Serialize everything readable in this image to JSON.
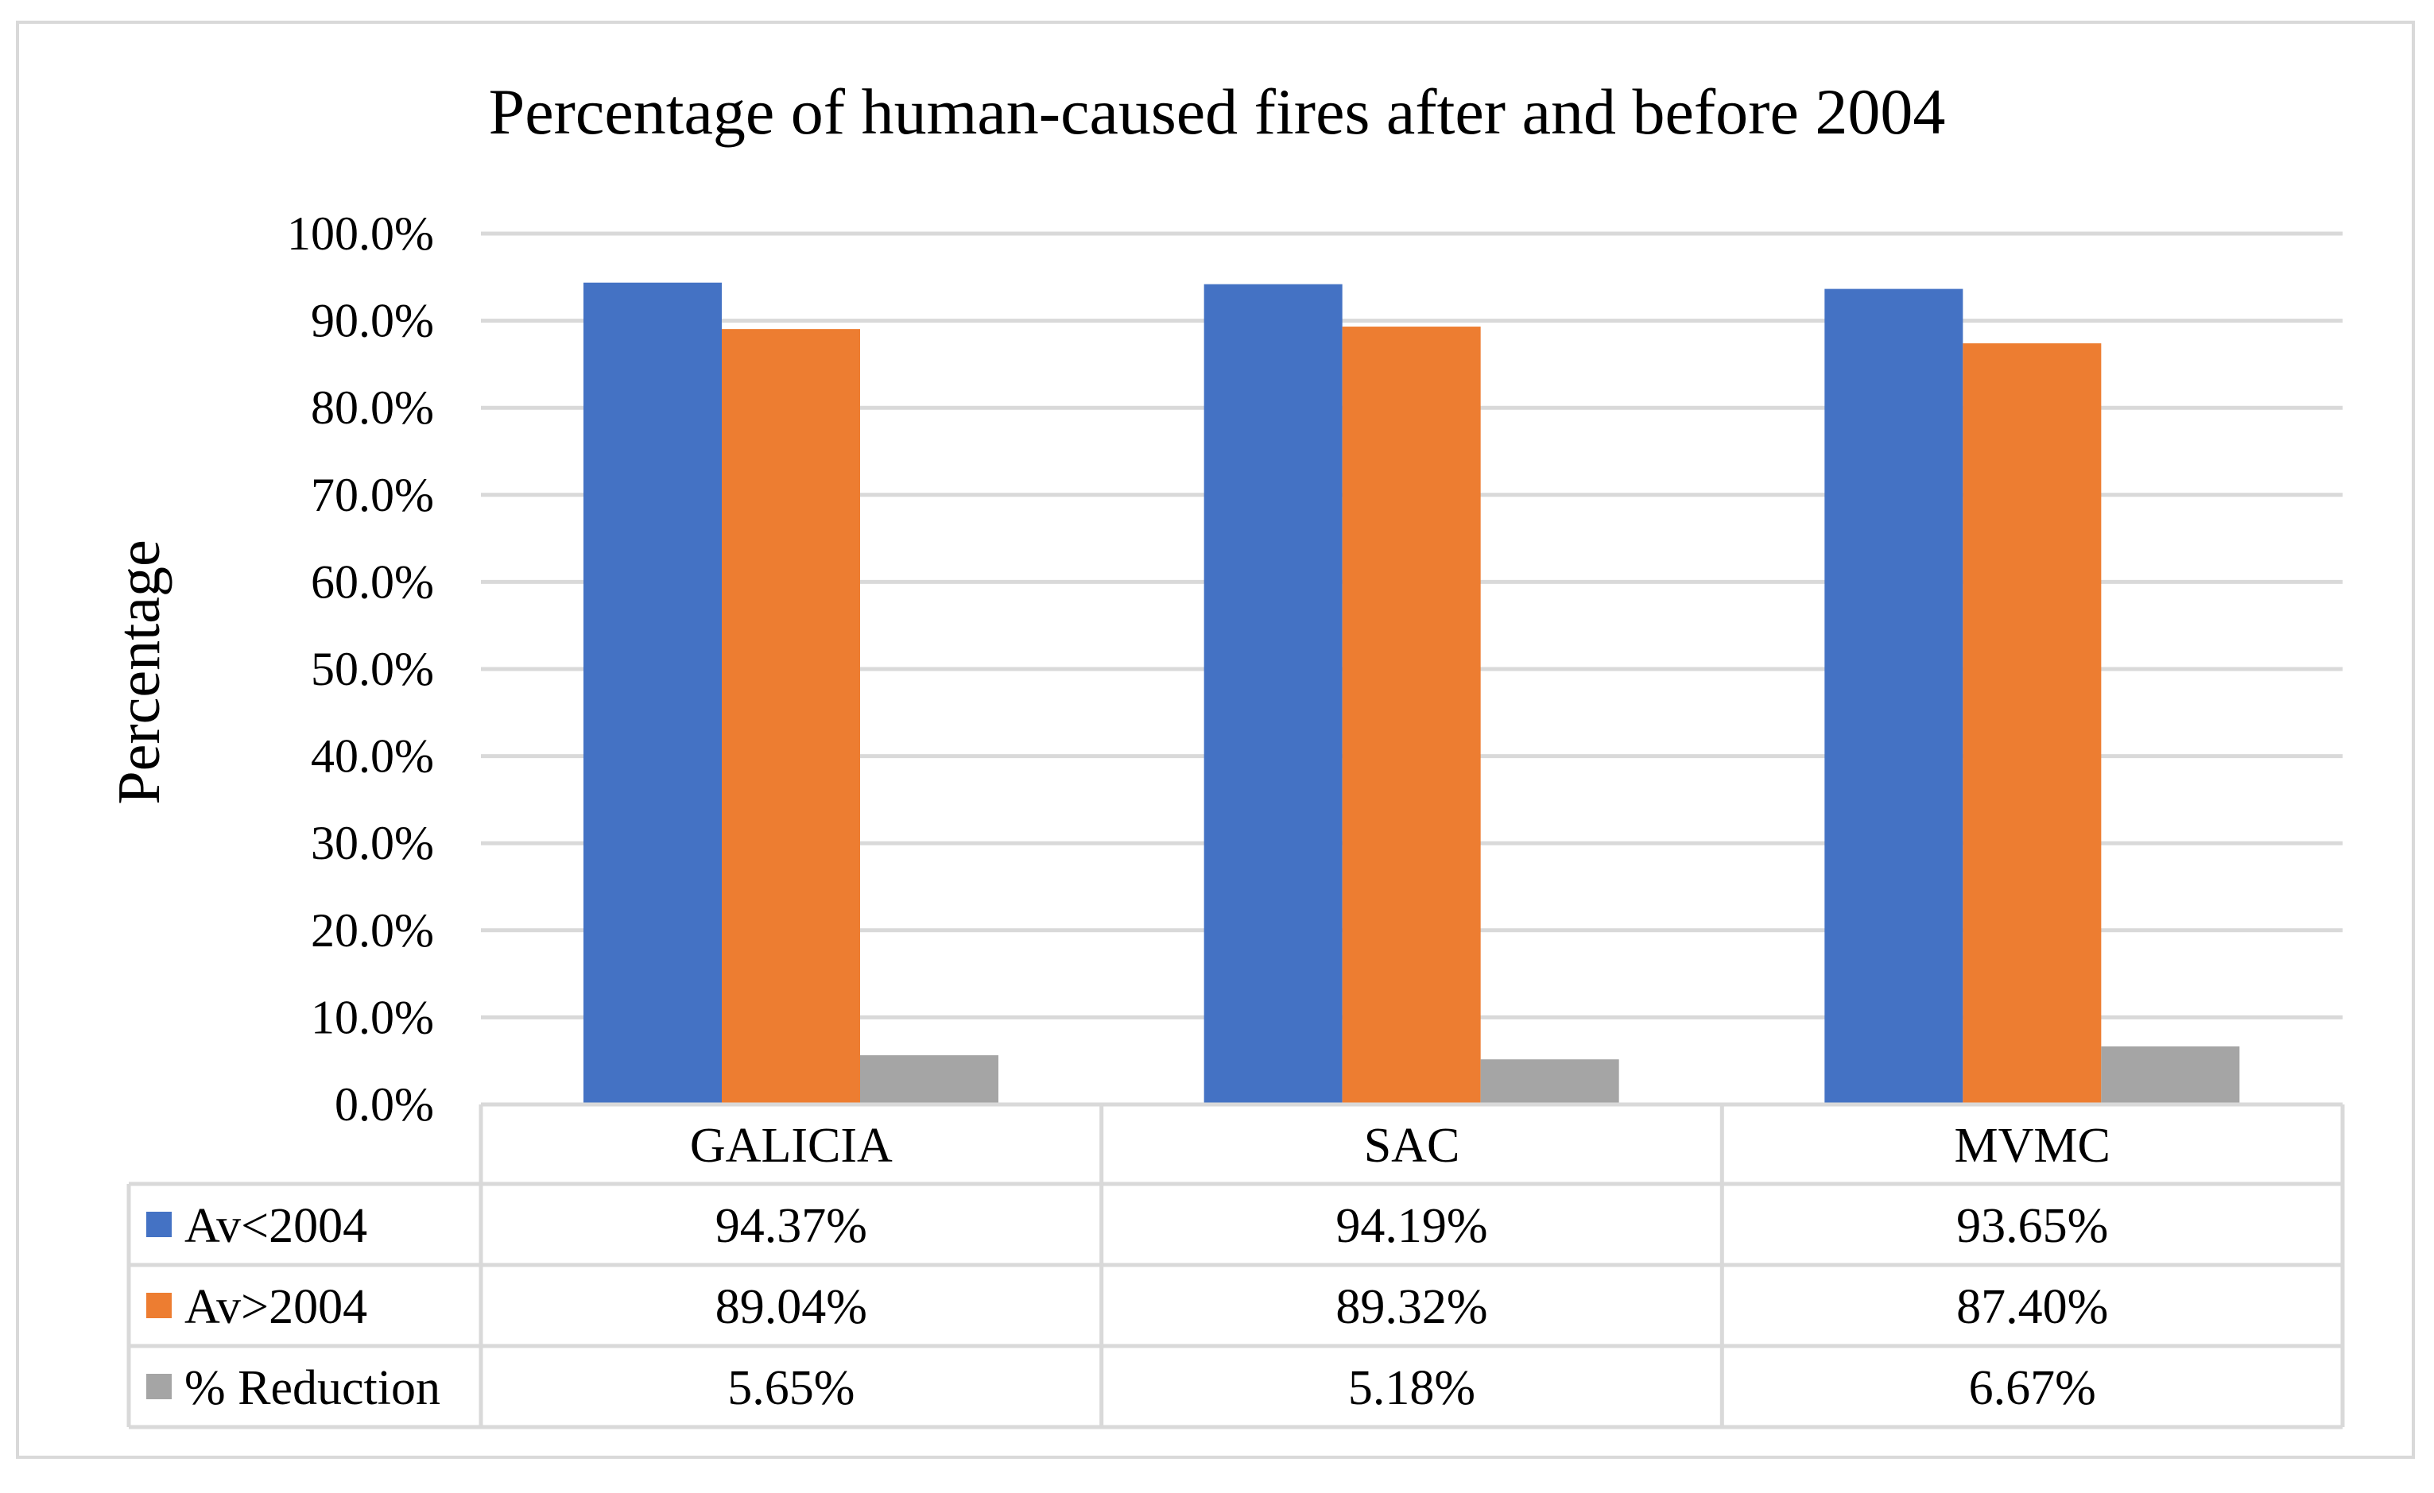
{
  "chart_data": {
    "type": "bar",
    "title": "Percentage of human-caused fires after and before 2004",
    "xlabel": "",
    "ylabel": "Percentage",
    "ylim": [
      0,
      1
    ],
    "y_ticks": [
      0,
      0.1,
      0.2,
      0.3,
      0.4,
      0.5,
      0.6,
      0.7,
      0.8,
      0.9,
      1.0
    ],
    "y_tick_labels": [
      "0.0%",
      "10.0%",
      "20.0%",
      "30.0%",
      "40.0%",
      "50.0%",
      "60.0%",
      "70.0%",
      "80.0%",
      "90.0%",
      "100.0%"
    ],
    "grid": true,
    "legend_placement": "data-table",
    "categories": [
      "GALICIA",
      "SAC",
      "MVMC"
    ],
    "series": [
      {
        "name": "Av<2004",
        "color": "#4472C4",
        "values": [
          0.9437,
          0.9419,
          0.9365
        ],
        "labels": [
          "94.37%",
          "94.19%",
          "93.65%"
        ]
      },
      {
        "name": "Av>2004",
        "color": "#ED7D31",
        "values": [
          0.8904,
          0.8932,
          0.874
        ],
        "labels": [
          "89.04%",
          "89.32%",
          "87.40%"
        ]
      },
      {
        "name": "% Reduction",
        "color": "#A5A5A5",
        "values": [
          0.0565,
          0.0518,
          0.0667
        ],
        "labels": [
          "5.65%",
          "5.18%",
          "6.67%"
        ]
      }
    ]
  },
  "colors": {
    "gridline": "#d9d9d9",
    "frame": "#d9d9d9",
    "text": "#000000"
  }
}
